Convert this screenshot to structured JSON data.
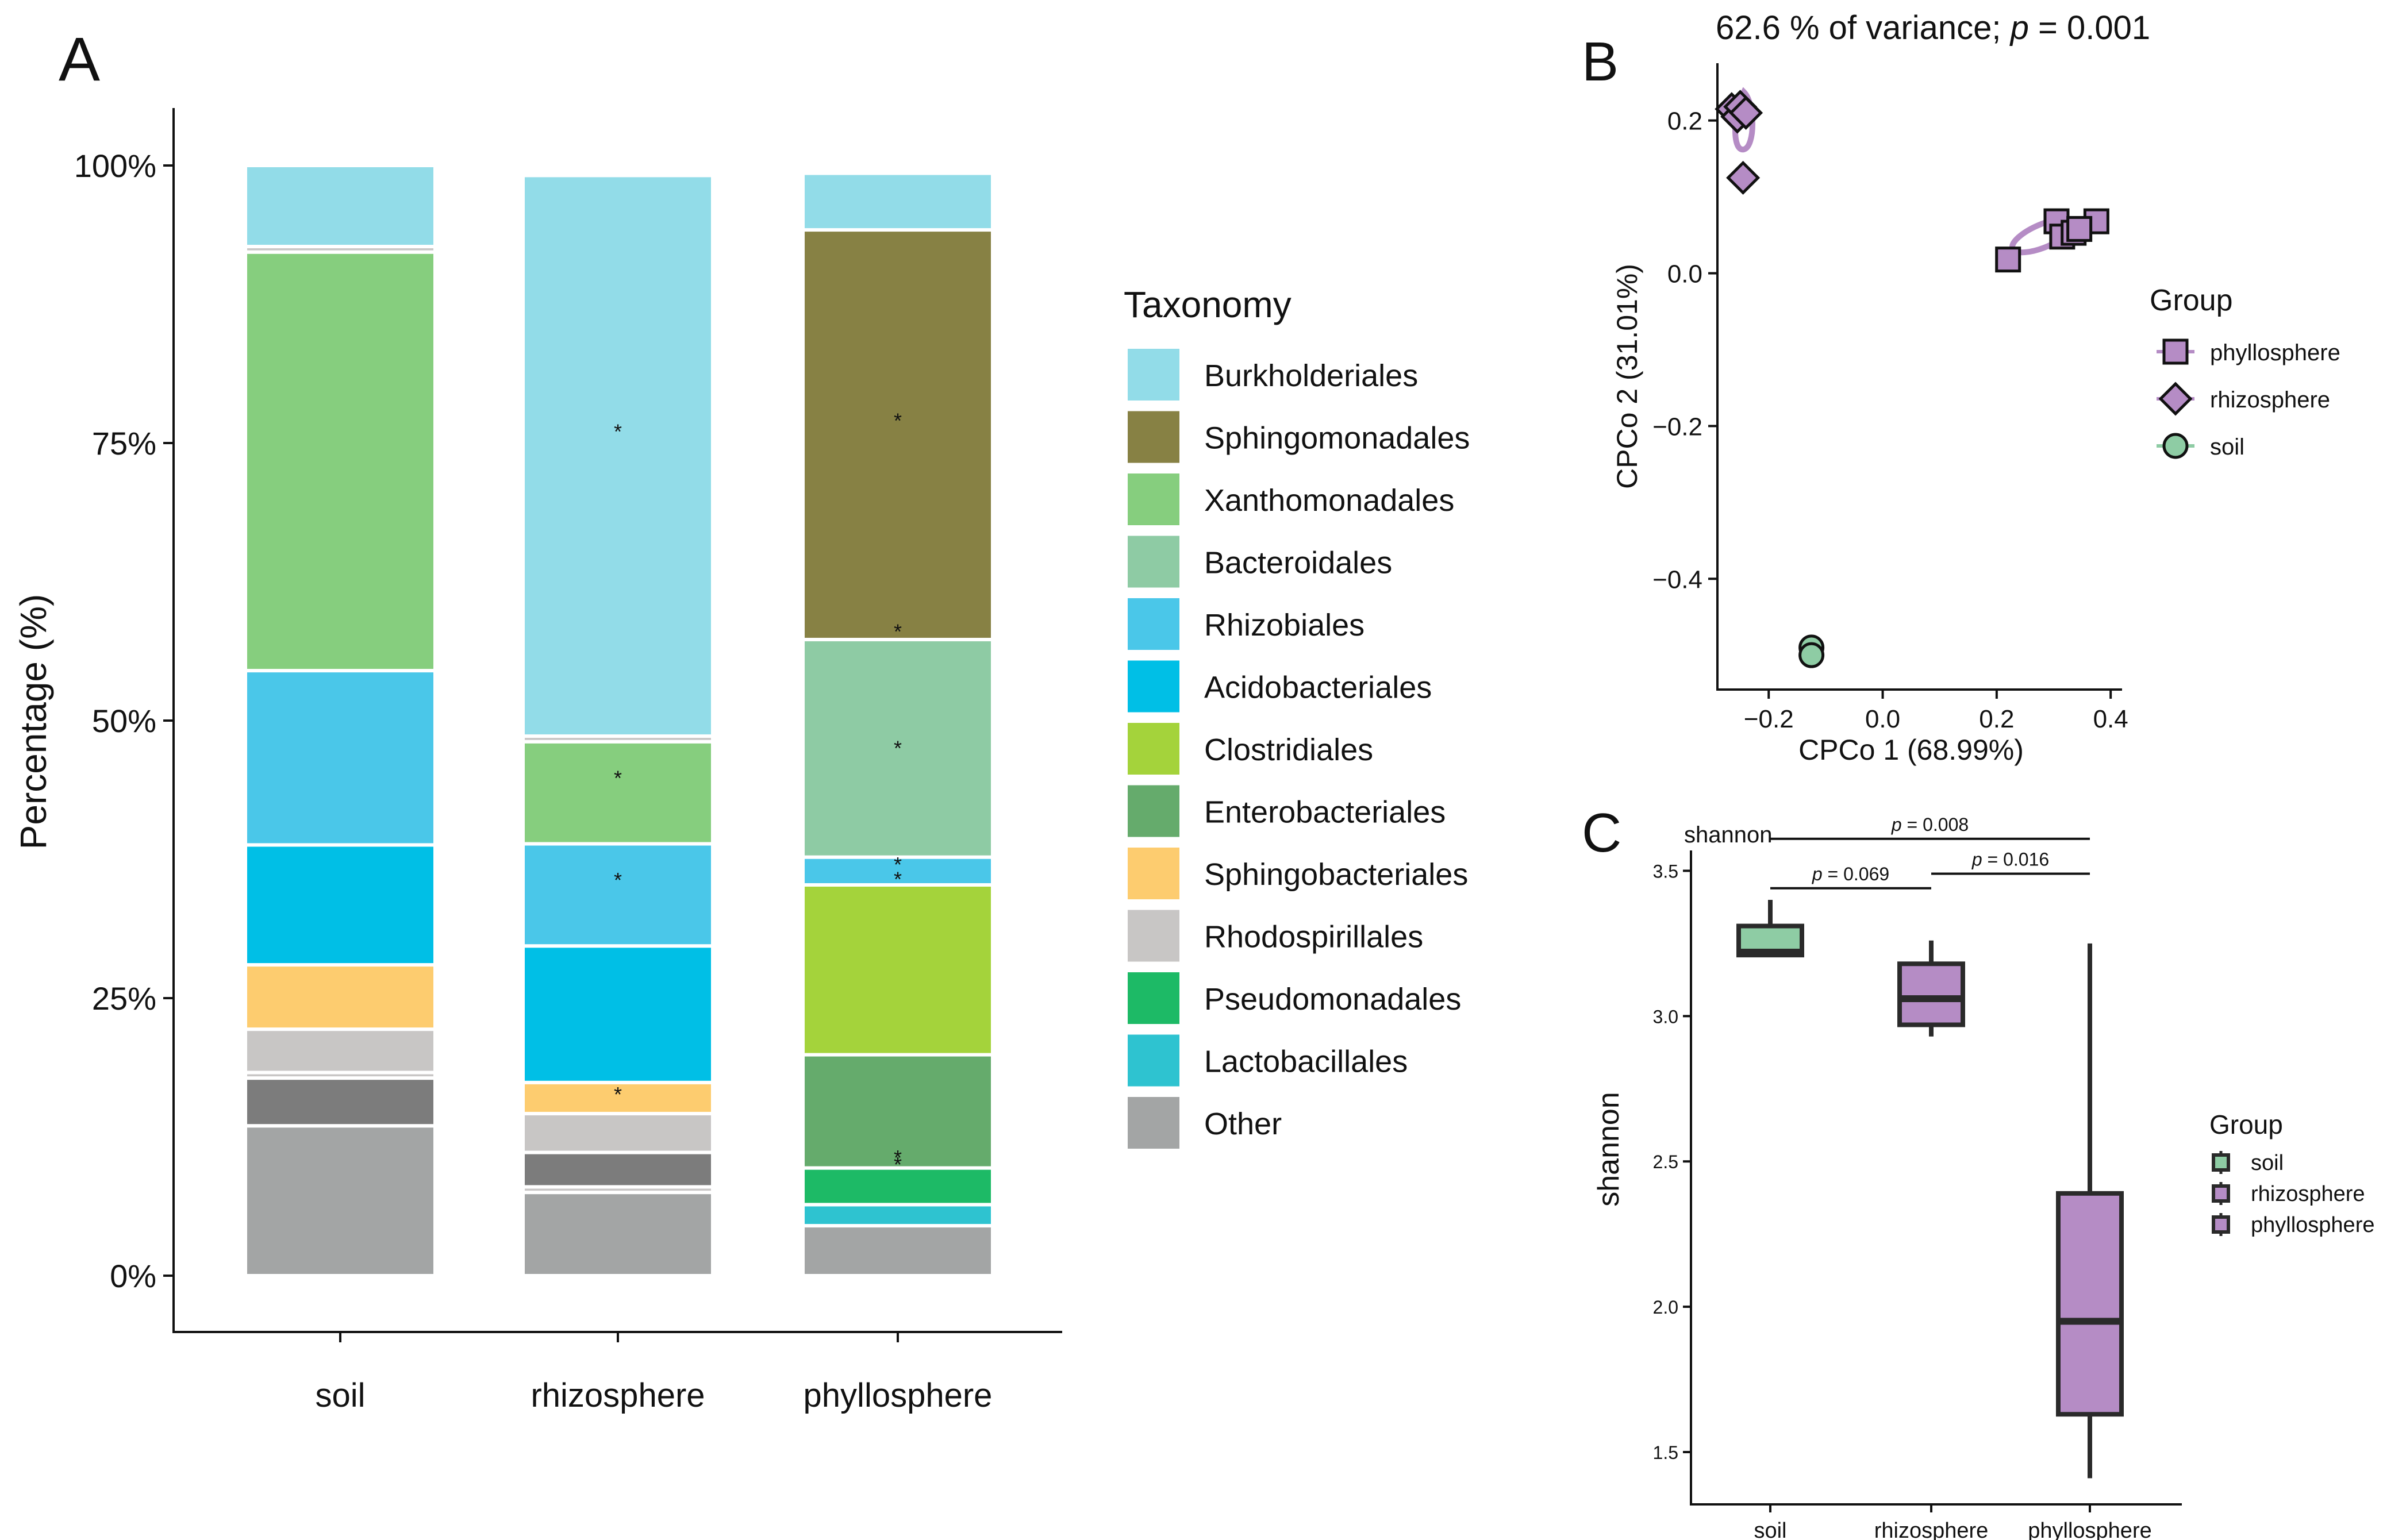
{
  "panels": {
    "a": "A",
    "b": "B",
    "c": "C"
  },
  "colors": {
    "Burkholderiales": "#92DCE8",
    "Sphingomonadales": "#878144",
    "Xanthomonadales": "#86CE7E",
    "Bacteroidales": "#8ECBA4",
    "Rhizobiales": "#4AC7E9",
    "Acidobacteriales": "#00BFE6",
    "Clostridiales": "#A4D33B",
    "Enterobacteriales": "#65AB6C",
    "Sphingobacteriales": "#FDCC6F",
    "Rhodospirillales": "#C8C6C5",
    "Pseudomonadales": "#1DBA66",
    "Lactobacillales": "#2EC3D0",
    "Other": "#A3A5A5",
    "Dark": "#7C7C7C",
    "soil": "#8ECCA4",
    "rhizosphere": "#B58CC5",
    "phyllosphere": "#B58CC5"
  },
  "chart_data": [
    {
      "id": "A",
      "type": "bar",
      "stacked": true,
      "ylabel": "Percentage (%)",
      "yticks": [
        "0%",
        "25%",
        "50%",
        "75%",
        "100%"
      ],
      "ylim": [
        0,
        100
      ],
      "categories": [
        "soil",
        "rhizosphere",
        "phyllosphere"
      ],
      "legend_title": "Taxonomy",
      "legend": [
        "Burkholderiales",
        "Sphingomonadales",
        "Xanthomonadales",
        "Bacteroidales",
        "Rhizobiales",
        "Acidobacteriales",
        "Clostridiales",
        "Enterobacteriales",
        "Sphingobacteriales",
        "Rhodospirillales",
        "Pseudomonadales",
        "Lactobacillales",
        "Other"
      ],
      "stacks": [
        [
          [
            "Other",
            13.5
          ],
          [
            "Dark",
            4.3
          ],
          [
            "Rhodospirillales",
            0.5
          ],
          [
            "Rhodospirillales",
            3.9
          ],
          [
            "Sphingobacteriales",
            5.8
          ],
          [
            "Acidobacteriales",
            10.8
          ],
          [
            "Rhizobiales",
            15.7
          ],
          [
            "Xanthomonadales",
            37.7
          ],
          [
            "Rhodospirillales",
            0.5
          ],
          [
            "Burkholderiales",
            7.3
          ]
        ],
        [
          [
            "Other",
            7.5
          ],
          [
            "Rhodospirillales",
            0.5
          ],
          [
            "Dark",
            3.1
          ],
          [
            "Rhodospirillales",
            3.5
          ],
          [
            "Sphingobacteriales",
            2.8
          ],
          [
            "Acidobacteriales",
            12.3
          ],
          [
            "Rhizobiales",
            9.2
          ],
          [
            "Xanthomonadales",
            9.2
          ],
          [
            "Rhodospirillales",
            0.5
          ],
          [
            "Burkholderiales",
            50.5
          ]
        ],
        [
          [
            "Other",
            4.5
          ],
          [
            "Lactobacillales",
            1.9
          ],
          [
            "Pseudomonadales",
            3.3
          ],
          [
            "Enterobacteriales",
            10.2
          ],
          [
            "Clostridiales",
            15.3
          ],
          [
            "Rhizobiales",
            2.5
          ],
          [
            "Bacteroidales",
            19.6
          ],
          [
            "Sphingomonadales",
            36.9
          ],
          [
            "Burkholderiales",
            5.1
          ]
        ]
      ],
      "markers": [
        {
          "x": "rhizosphere",
          "y": 76.0
        },
        {
          "x": "rhizosphere",
          "y": 44.8
        },
        {
          "x": "rhizosphere",
          "y": 35.6
        },
        {
          "x": "rhizosphere",
          "y": 16.3
        },
        {
          "x": "phyllosphere",
          "y": 77.0
        },
        {
          "x": "phyllosphere",
          "y": 58.0
        },
        {
          "x": "phyllosphere",
          "y": 47.5
        },
        {
          "x": "phyllosphere",
          "y": 37.0
        },
        {
          "x": "phyllosphere",
          "y": 35.7
        },
        {
          "x": "phyllosphere",
          "y": 10.6
        },
        {
          "x": "phyllosphere",
          "y": 10.0
        }
      ]
    },
    {
      "id": "B",
      "type": "scatter",
      "title_prefix": "62.6 % of variance; ",
      "title_p": "p",
      "title_suffix": " = 0.001",
      "xlabel": "CPCo 1 (68.99%)",
      "ylabel": "CPCo 2 (31.01%)",
      "xlim": [
        -0.29,
        0.42
      ],
      "ylim": [
        -0.545,
        0.275
      ],
      "xticks": [
        -0.2,
        0.0,
        0.2,
        0.4
      ],
      "xtick_labels": [
        "−0.2",
        "0.0",
        "0.2",
        "0.4"
      ],
      "yticks": [
        0.2,
        0.0,
        -0.2,
        -0.4
      ],
      "ytick_labels": [
        "0.2",
        "0.0",
        "−0.2",
        "−0.4"
      ],
      "legend_title": "Group",
      "series": [
        {
          "name": "phyllosphere",
          "shape": "square",
          "points": [
            [
              0.22,
              0.018
            ],
            [
              0.305,
              0.068
            ],
            [
              0.315,
              0.048
            ],
            [
              0.335,
              0.053
            ],
            [
              0.375,
              0.068
            ],
            [
              0.345,
              0.058
            ]
          ]
        },
        {
          "name": "rhizosphere",
          "shape": "diamond",
          "points": [
            [
              -0.265,
              0.215
            ],
            [
              -0.255,
              0.205
            ],
            [
              -0.25,
              0.218
            ],
            [
              -0.24,
              0.21
            ],
            [
              -0.245,
              0.125
            ]
          ]
        },
        {
          "name": "soil",
          "shape": "circle",
          "points": [
            [
              -0.125,
              -0.49
            ],
            [
              -0.125,
              -0.5
            ]
          ]
        }
      ]
    },
    {
      "id": "C",
      "type": "box",
      "title": "shannon",
      "ylabel": "shannon",
      "ylim": [
        1.32,
        3.57
      ],
      "yticks": [
        1.5,
        2.0,
        2.5,
        3.0,
        3.5
      ],
      "ytick_labels": [
        "1.5",
        "2.0",
        "2.5",
        "3.0",
        "3.5"
      ],
      "categories": [
        "soil",
        "rhizosphere",
        "phyllosphere"
      ],
      "legend_title": "Group",
      "legend": [
        "soil",
        "rhizosphere",
        "phyllosphere"
      ],
      "boxes": [
        {
          "group": "soil",
          "min": 3.21,
          "q1": 3.21,
          "median": 3.22,
          "q3": 3.31,
          "max": 3.4
        },
        {
          "group": "rhizosphere",
          "min": 2.93,
          "q1": 2.97,
          "median": 3.06,
          "q3": 3.18,
          "max": 3.26
        },
        {
          "group": "phyllosphere",
          "min": 1.41,
          "q1": 1.63,
          "median": 1.95,
          "q3": 2.39,
          "max": 3.25
        }
      ],
      "comparisons": [
        {
          "from": "soil",
          "to": "phyllosphere",
          "p_label": "p",
          "value": " = 0.008",
          "y": 3.61
        },
        {
          "from": "soil",
          "to": "rhizosphere",
          "p_label": "p",
          "value": " = 0.069",
          "y": 3.44
        },
        {
          "from": "rhizosphere",
          "to": "phyllosphere",
          "p_label": "p",
          "value": " = 0.016",
          "y": 3.49
        }
      ]
    }
  ]
}
